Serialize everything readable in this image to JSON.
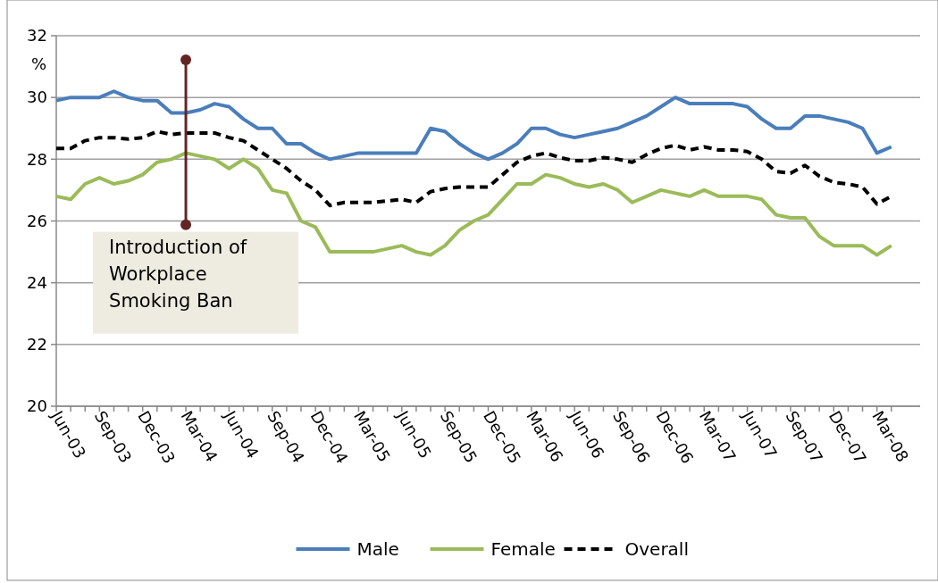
{
  "chart_data": {
    "type": "line",
    "ylabel": "%",
    "categories": [
      "Jun-03",
      null,
      null,
      "Sep-03",
      null,
      null,
      "Dec-03",
      null,
      null,
      "Mar-04",
      null,
      null,
      "Jun-04",
      null,
      null,
      "Sep-04",
      null,
      null,
      "Dec-04",
      null,
      null,
      "Mar-05",
      null,
      null,
      "Jun-05",
      null,
      null,
      "Sep-05",
      null,
      null,
      "Dec-05",
      null,
      null,
      "Mar-06",
      null,
      null,
      "Jun-06",
      null,
      null,
      "Sep-06",
      null,
      null,
      "Dec-06",
      null,
      null,
      "Mar-07",
      null,
      null,
      "Jun-07",
      null,
      null,
      "Sep-07",
      null,
      null,
      "Dec-07",
      null,
      null,
      "Mar-08",
      null
    ],
    "series": [
      {
        "name": "Male",
        "color": "#4a7ebb",
        "values": [
          29.9,
          30.0,
          30.0,
          30.0,
          30.2,
          30.0,
          29.9,
          29.9,
          29.5,
          29.5,
          29.6,
          29.8,
          29.7,
          29.3,
          29.0,
          29.0,
          28.5,
          28.5,
          28.2,
          28.0,
          28.1,
          28.2,
          28.2,
          28.2,
          28.2,
          28.2,
          29.0,
          28.9,
          28.5,
          28.2,
          28.0,
          28.2,
          28.5,
          29.0,
          29.0,
          28.8,
          28.7,
          28.8,
          28.9,
          29.0,
          29.2,
          29.4,
          29.7,
          30.0,
          29.8,
          29.8,
          29.8,
          29.8,
          29.7,
          29.3,
          29.0,
          29.0,
          29.4,
          29.4,
          29.3,
          29.2,
          29.0,
          28.2,
          28.4
        ]
      },
      {
        "name": "Female",
        "color": "#9bbb59",
        "values": [
          26.8,
          26.7,
          27.2,
          27.4,
          27.2,
          27.3,
          27.5,
          27.9,
          28.0,
          28.2,
          28.1,
          28.0,
          27.7,
          28.0,
          27.7,
          27.0,
          26.9,
          26.0,
          25.8,
          25.0,
          25.0,
          25.0,
          25.0,
          25.1,
          25.2,
          25.0,
          24.9,
          25.2,
          25.7,
          26.0,
          26.2,
          26.7,
          27.2,
          27.2,
          27.5,
          27.4,
          27.2,
          27.1,
          27.2,
          27.0,
          26.6,
          26.8,
          27.0,
          26.9,
          26.8,
          27.0,
          26.8,
          26.8,
          26.8,
          26.7,
          26.2,
          26.1,
          26.1,
          25.5,
          25.2,
          25.2,
          25.2,
          24.9,
          25.2
        ]
      },
      {
        "name": "Overall",
        "color": "#000000",
        "line_style": "dashed",
        "values": [
          28.35,
          28.35,
          28.6,
          28.7,
          28.7,
          28.65,
          28.7,
          28.9,
          28.8,
          28.85,
          28.85,
          28.85,
          28.7,
          28.6,
          28.3,
          28.0,
          27.7,
          27.3,
          27.0,
          26.5,
          26.6,
          26.6,
          26.6,
          26.65,
          26.7,
          26.6,
          26.95,
          27.05,
          27.1,
          27.1,
          27.1,
          27.5,
          27.9,
          28.1,
          28.2,
          28.05,
          27.95,
          27.95,
          28.05,
          28.0,
          27.9,
          28.15,
          28.35,
          28.45,
          28.3,
          28.4,
          28.3,
          28.3,
          28.25,
          28.0,
          27.6,
          27.55,
          27.8,
          27.45,
          27.25,
          27.2,
          27.1,
          26.55,
          26.8
        ]
      }
    ],
    "ylim": [
      20,
      32
    ],
    "yticks": [
      20,
      22,
      24,
      26,
      28,
      30,
      32
    ],
    "grid": "y",
    "legend": "bottom",
    "line_style": "solid",
    "ref_lines": [
      {
        "axis": "x",
        "value": "Mar-04",
        "label": "Introduction of Workplace Smoking Ban",
        "color": "#632523"
      }
    ]
  }
}
